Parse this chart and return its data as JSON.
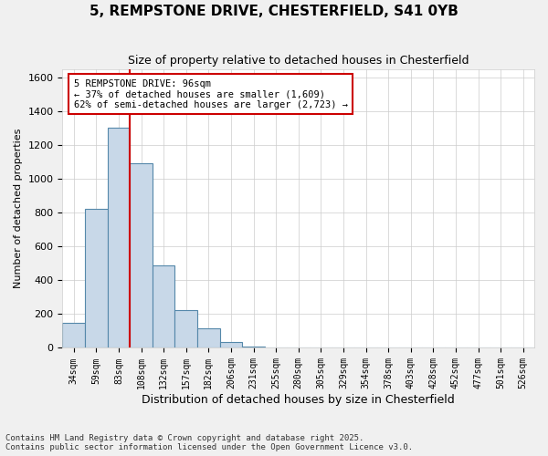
{
  "title_line1": "5, REMPSTONE DRIVE, CHESTERFIELD, S41 0YB",
  "title_line2": "Size of property relative to detached houses in Chesterfield",
  "xlabel": "Distribution of detached houses by size in Chesterfield",
  "ylabel": "Number of detached properties",
  "categories": [
    "34sqm",
    "59sqm",
    "83sqm",
    "108sqm",
    "132sqm",
    "157sqm",
    "182sqm",
    "206sqm",
    "231sqm",
    "255sqm",
    "280sqm",
    "305sqm",
    "329sqm",
    "354sqm",
    "378sqm",
    "403sqm",
    "428sqm",
    "452sqm",
    "477sqm",
    "501sqm",
    "526sqm"
  ],
  "bar_values": [
    150,
    820,
    1300,
    1090,
    490,
    225,
    115,
    35,
    10,
    5,
    2,
    1,
    0,
    0,
    0,
    0,
    0,
    0,
    0,
    0,
    0
  ],
  "property_line_x": 2.5,
  "ylim": [
    0,
    1650
  ],
  "yticks": [
    0,
    200,
    400,
    600,
    800,
    1000,
    1200,
    1400,
    1600
  ],
  "bar_color": "#c8d8e8",
  "bar_edge_color": "#5588aa",
  "property_line_color": "#cc0000",
  "annotation_text": "5 REMPSTONE DRIVE: 96sqm\n← 37% of detached houses are smaller (1,609)\n62% of semi-detached houses are larger (2,723) →",
  "footer_line1": "Contains HM Land Registry data © Crown copyright and database right 2025.",
  "footer_line2": "Contains public sector information licensed under the Open Government Licence v3.0.",
  "background_color": "#f0f0f0",
  "plot_background": "#ffffff",
  "annotation_box_color": "#ffffff",
  "annotation_box_edge": "#cc0000"
}
